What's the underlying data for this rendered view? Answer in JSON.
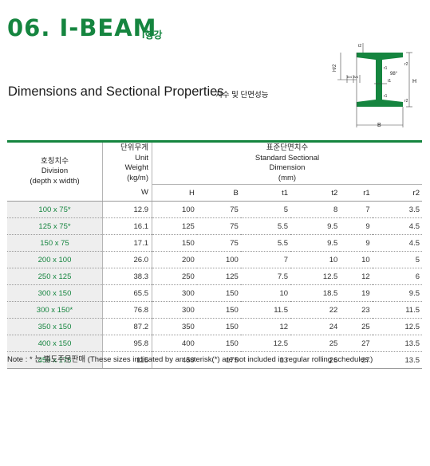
{
  "header": {
    "title": "06. I-BEAM",
    "title_sub": "I형강",
    "subtitle": "Dimensions and Sectional Properties",
    "subtitle_ko": "치수 및 단면성능"
  },
  "diagram": {
    "labels": {
      "t2": "t2",
      "h_half": "H/2",
      "b_quarter": "B/4",
      "r1": "r1",
      "r2": "r2",
      "angle": "98°",
      "t1": "t1",
      "H": "H",
      "B": "B"
    }
  },
  "table": {
    "division_header": [
      "호칭치수",
      "Division",
      "(depth x width)"
    ],
    "weight_header": [
      "단위무게",
      "Unit",
      "Weight",
      "(kg/m)"
    ],
    "std_header": [
      "표준단면치수",
      "Standard Sectional",
      "Dimension",
      "(mm)"
    ],
    "col_w": "W",
    "cols": [
      "H",
      "B",
      "t1",
      "t2",
      "r1",
      "r2"
    ],
    "rows": [
      {
        "div": "100 x 75*",
        "w": "12.9",
        "h": "100",
        "b": "75",
        "t1": "5",
        "t2": "8",
        "r1": "7",
        "r2": "3.5"
      },
      {
        "div": "125 x 75*",
        "w": "16.1",
        "h": "125",
        "b": "75",
        "t1": "5.5",
        "t2": "9.5",
        "r1": "9",
        "r2": "4.5"
      },
      {
        "div": "150 x 75",
        "w": "17.1",
        "h": "150",
        "b": "75",
        "t1": "5.5",
        "t2": "9.5",
        "r1": "9",
        "r2": "4.5"
      },
      {
        "div": "200 x 100",
        "w": "26.0",
        "h": "200",
        "b": "100",
        "t1": "7",
        "t2": "10",
        "r1": "10",
        "r2": "5"
      },
      {
        "div": "250 x 125",
        "w": "38.3",
        "h": "250",
        "b": "125",
        "t1": "7.5",
        "t2": "12.5",
        "r1": "12",
        "r2": "6"
      },
      {
        "div": "300 x 150",
        "w": "65.5",
        "h": "300",
        "b": "150",
        "t1": "10",
        "t2": "18.5",
        "r1": "19",
        "r2": "9.5"
      },
      {
        "div": "300 x 150*",
        "w": "76.8",
        "h": "300",
        "b": "150",
        "t1": "11.5",
        "t2": "22",
        "r1": "23",
        "r2": "11.5"
      },
      {
        "div": "350 x 150",
        "w": "87.2",
        "h": "350",
        "b": "150",
        "t1": "12",
        "t2": "24",
        "r1": "25",
        "r2": "12.5"
      },
      {
        "div": "400 x 150",
        "w": "95.8",
        "h": "400",
        "b": "150",
        "t1": "12.5",
        "t2": "25",
        "r1": "27",
        "r2": "13.5"
      },
      {
        "div": "450 x 175",
        "w": "115",
        "h": "450",
        "b": "175",
        "t1": "13",
        "t2": "26",
        "r1": "27",
        "r2": "13.5"
      }
    ]
  },
  "note": "Note : * 는 별도주문판매 (These sizes indicated by an asterisk(*) are not included in regular rolling schedules.)",
  "colors": {
    "accent": "#15853f",
    "row_shade": "#eeeeee"
  }
}
